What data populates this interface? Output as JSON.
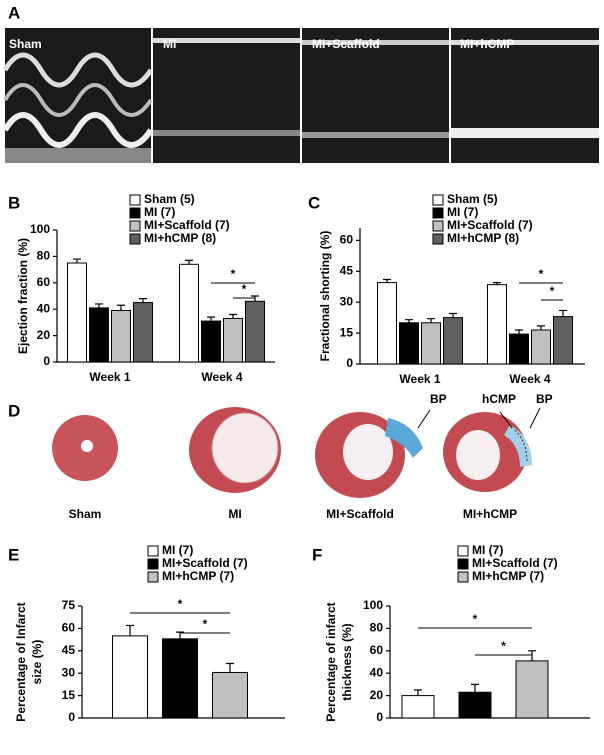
{
  "panel_labels": [
    "A",
    "B",
    "C",
    "D",
    "E",
    "F"
  ],
  "echo_labels": [
    "Sham",
    "MI",
    "MI+Scaffold",
    "MI+hCMP"
  ],
  "histology": {
    "labels": [
      "Sham",
      "MI",
      "MI+Scaffold",
      "MI+hCMP"
    ],
    "annotations": [
      "BP",
      "hCMP",
      "BP"
    ]
  },
  "chart_data": [
    {
      "type": "bar",
      "ylabel": "Ejection fraction  (%)",
      "categories": [
        "Week 1",
        "Week 4"
      ],
      "series": [
        {
          "name": "Sham (5)",
          "color": "#ffffff",
          "values": [
            75,
            74
          ],
          "errors": [
            3,
            3
          ]
        },
        {
          "name": "MI (7)",
          "color": "#000000",
          "values": [
            41,
            31
          ],
          "errors": [
            3,
            3
          ]
        },
        {
          "name": "MI+Scaffold (7)",
          "color": "#c0c0c0",
          "values": [
            39,
            33
          ],
          "errors": [
            4,
            3
          ]
        },
        {
          "name": "MI+hCMP (8)",
          "color": "#606060",
          "values": [
            45,
            46
          ],
          "errors": [
            3,
            4
          ]
        }
      ],
      "ylim": [
        0,
        100
      ],
      "yticks": [
        0,
        20,
        40,
        60,
        80,
        100
      ],
      "annotations": [
        "*",
        "*"
      ]
    },
    {
      "type": "bar",
      "ylabel": "Fractional shorting  (%)",
      "categories": [
        "Week 1",
        "Week 4"
      ],
      "series": [
        {
          "name": "Sham (5)",
          "color": "#ffffff",
          "values": [
            39.5,
            38.5
          ],
          "errors": [
            1.5,
            1
          ]
        },
        {
          "name": "MI (7)",
          "color": "#000000",
          "values": [
            20,
            14.5
          ],
          "errors": [
            1.5,
            2
          ]
        },
        {
          "name": "MI+Scaffold (7)",
          "color": "#c0c0c0",
          "values": [
            20,
            16.5
          ],
          "errors": [
            2,
            2
          ]
        },
        {
          "name": "MI+hCMP (8)",
          "color": "#606060",
          "values": [
            22.5,
            23
          ],
          "errors": [
            2,
            3
          ]
        }
      ],
      "ylim": [
        0,
        66
      ],
      "yticks": [
        0,
        15,
        30,
        45,
        60
      ],
      "annotations": [
        "*",
        "*"
      ]
    },
    {
      "type": "bar",
      "ylabel": [
        "Percentage of Infarct",
        "size (%)"
      ],
      "categories": [
        null
      ],
      "series": [
        {
          "name": "MI (7)",
          "color": "#ffffff",
          "values": [
            55
          ],
          "errors": [
            7
          ]
        },
        {
          "name": "MI+Scaffold (7)",
          "color": "#000000",
          "values": [
            53
          ],
          "errors": [
            4.5
          ]
        },
        {
          "name": "MI+hCMP (7)",
          "color": "#c0c0c0",
          "values": [
            30.5
          ],
          "errors": [
            6
          ]
        }
      ],
      "ylim": [
        0,
        75
      ],
      "yticks": [
        0,
        15,
        30,
        45,
        60,
        75
      ],
      "annotations": [
        "*",
        "*"
      ]
    },
    {
      "type": "bar",
      "ylabel": [
        "Percentage of infarct",
        "thickness (%)"
      ],
      "categories": [
        null
      ],
      "series": [
        {
          "name": "MI (7)",
          "color": "#ffffff",
          "values": [
            20
          ],
          "errors": [
            5
          ]
        },
        {
          "name": "MI+Scaffold (7)",
          "color": "#000000",
          "values": [
            23
          ],
          "errors": [
            7
          ]
        },
        {
          "name": "MI+hCMP (7)",
          "color": "#c0c0c0",
          "values": [
            51
          ],
          "errors": [
            9
          ]
        }
      ],
      "ylim": [
        0,
        100
      ],
      "yticks": [
        0,
        20,
        40,
        60,
        80,
        100
      ],
      "annotations": [
        "*",
        "*"
      ]
    }
  ]
}
